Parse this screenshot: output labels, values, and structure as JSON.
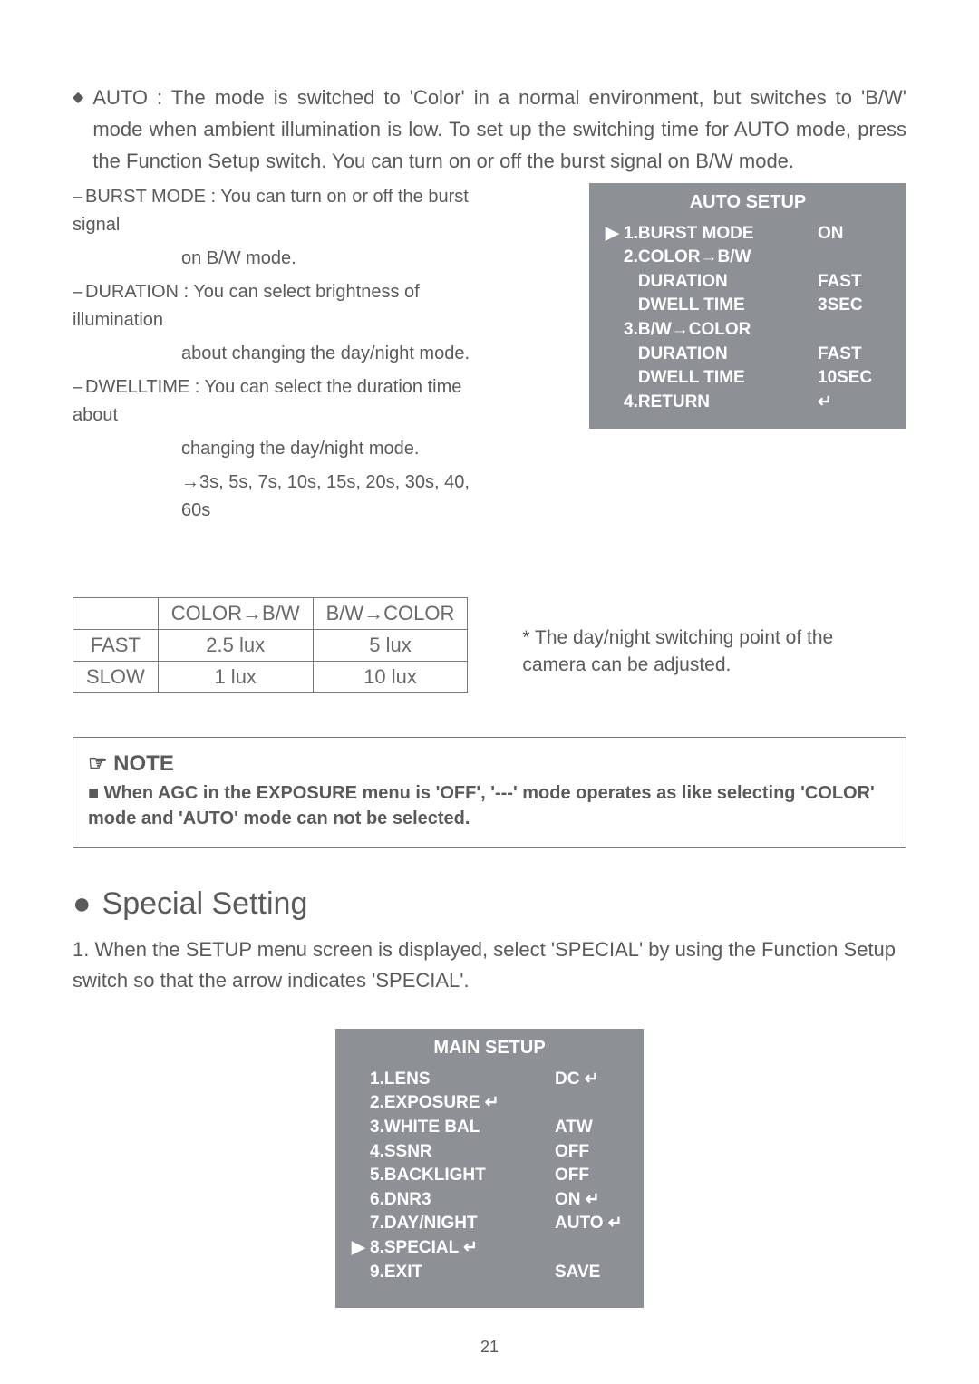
{
  "auto_para": "AUTO : The mode is switched to 'Color' in a normal environment, but switches to 'B/W' mode when ambient illumination is low. To set up the switching time for AUTO mode, press the Function Setup switch. You can turn on or off the burst signal on B/W mode.",
  "sub": {
    "burst": "BURST MODE : You can turn on or off the burst signal",
    "burst2": "on B/W mode.",
    "dur": "DURATION : You can select brightness of illumination",
    "dur2": "about changing the day/night mode.",
    "dwell": "DWELLTIME : You can select the duration time about",
    "dwell2": "changing the day/night mode.",
    "times": "→3s, 5s, 7s, 10s, 15s, 20s, 30s, 40, 60s"
  },
  "auto_menu": {
    "title": "AUTO SETUP",
    "rows": [
      {
        "ptr": "▶",
        "label": "1.BURST MODE",
        "val": "ON",
        "enter": false
      },
      {
        "ptr": "",
        "label": "2.COLOR→B/W",
        "val": "",
        "enter": false
      },
      {
        "ptr": "",
        "label": "   DURATION",
        "val": "FAST",
        "enter": false
      },
      {
        "ptr": "",
        "label": "   DWELL TIME",
        "val": "3SEC",
        "enter": false
      },
      {
        "ptr": "",
        "label": "3.B/W→COLOR",
        "val": "",
        "enter": false
      },
      {
        "ptr": "",
        "label": "   DURATION",
        "val": "FAST",
        "enter": false
      },
      {
        "ptr": "",
        "label": "   DWELL TIME",
        "val": "10SEC",
        "enter": false
      },
      {
        "ptr": "",
        "label": "4.RETURN",
        "val": "",
        "enter": true
      }
    ]
  },
  "lux": {
    "headers": [
      "",
      "COLOR→B/W",
      "B/W→COLOR"
    ],
    "rows": [
      [
        "FAST",
        "2.5 lux",
        "5 lux"
      ],
      [
        "SLOW",
        "1 lux",
        "10 lux"
      ]
    ],
    "note": "* The day/night switching point of the camera can be adjusted."
  },
  "note": {
    "title": "☞ NOTE",
    "body": "■ When AGC in the EXPOSURE menu is 'OFF', '---' mode operates as like selecting 'COLOR' mode and 'AUTO' mode can not be selected."
  },
  "special": {
    "title": "Special Setting",
    "para": "1. When the SETUP menu screen is displayed, select 'SPECIAL' by using the Function Setup switch so that the arrow indicates 'SPECIAL'."
  },
  "main_menu": {
    "title": "MAIN SETUP",
    "rows": [
      {
        "ptr": "",
        "label": "1.LENS",
        "val": "DC",
        "enter": true
      },
      {
        "ptr": "",
        "label": "2.EXPOSURE",
        "val": "",
        "enter": true,
        "label_enter": true
      },
      {
        "ptr": "",
        "label": "3.WHITE BAL",
        "val": "ATW",
        "enter": false
      },
      {
        "ptr": "",
        "label": "4.SSNR",
        "val": "OFF",
        "enter": false
      },
      {
        "ptr": "",
        "label": "5.BACKLIGHT",
        "val": "OFF",
        "enter": false
      },
      {
        "ptr": "",
        "label": "6.DNR3",
        "val": "ON",
        "enter": true
      },
      {
        "ptr": "",
        "label": "7.DAY/NIGHT",
        "val": "AUTO",
        "enter": true
      },
      {
        "ptr": "▶",
        "label": "8.SPECIAL",
        "val": "",
        "enter": true,
        "label_enter": true
      },
      {
        "ptr": "",
        "label": "9.EXIT",
        "val": "SAVE",
        "enter": false
      }
    ]
  },
  "page": "21"
}
